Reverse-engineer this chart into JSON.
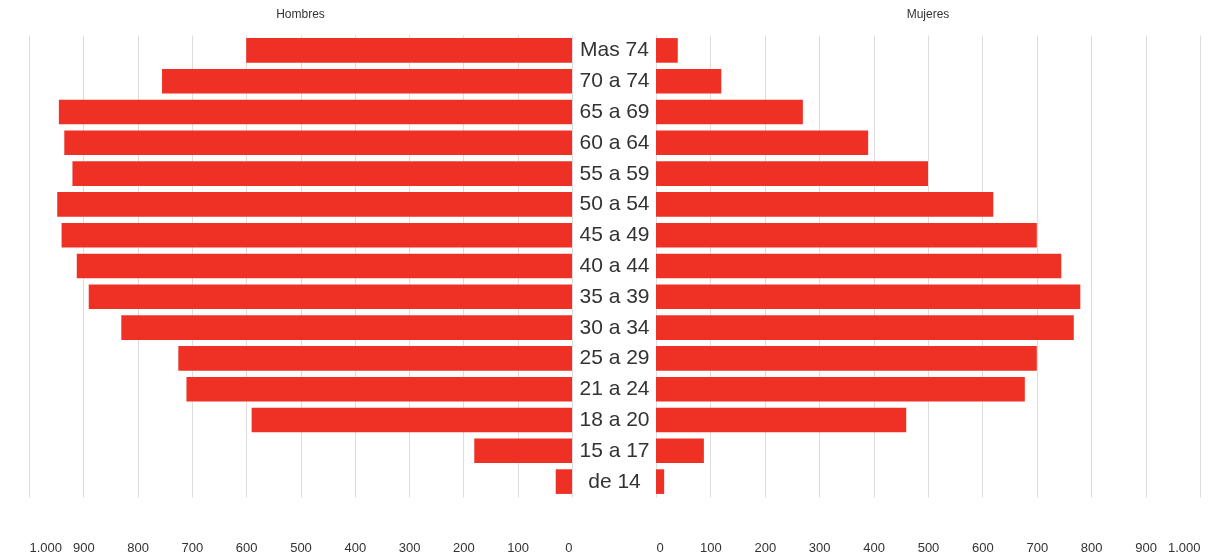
{
  "chart_data": [
    {
      "type": "bar",
      "orientation": "horizontal",
      "title": "Hombres",
      "tick_labels": "xy",
      "grid": "x",
      "color": "#ee3124",
      "categories": [
        "Mas 74",
        "70 a 74",
        "65 a 69",
        "60 a 64",
        "55 a 59",
        "50 a 54",
        "45 a 49",
        "40 a 44",
        "35 a 39",
        "30 a 34",
        "25 a 29",
        "21 a 24",
        "18 a 20",
        "15 a 17",
        "de 14"
      ],
      "values": [
        600,
        755,
        945,
        935,
        920,
        948,
        940,
        912,
        890,
        830,
        725,
        710,
        590,
        180,
        30
      ],
      "xlim": [
        1000,
        0
      ],
      "xticks": [
        {
          "value": 1000,
          "label": "1.000"
        },
        900,
        800,
        700,
        600,
        500,
        400,
        300,
        200,
        100,
        0
      ]
    },
    {
      "type": "bar",
      "orientation": "horizontal",
      "title": "Mujeres",
      "tick_labels": "x",
      "grid": "x",
      "color": "#ee3124",
      "categories": [
        null,
        null,
        null,
        null,
        null,
        null,
        null,
        null,
        null,
        null,
        null,
        null,
        null,
        null,
        null
      ],
      "values": [
        40,
        120,
        270,
        390,
        500,
        620,
        700,
        745,
        780,
        768,
        700,
        678,
        460,
        88,
        15
      ],
      "xlim": [
        0,
        1000
      ],
      "xticks": [
        0,
        100,
        200,
        300,
        400,
        500,
        600,
        700,
        800,
        900,
        {
          "value": 1000,
          "label": "1.000"
        }
      ]
    }
  ]
}
